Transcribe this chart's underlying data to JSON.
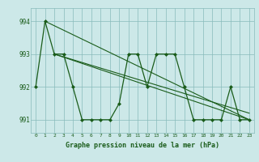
{
  "x": [
    0,
    1,
    2,
    3,
    4,
    5,
    6,
    7,
    8,
    9,
    10,
    11,
    12,
    13,
    14,
    15,
    16,
    17,
    18,
    19,
    20,
    21,
    22,
    23
  ],
  "y_main": [
    992.0,
    994.0,
    993.0,
    993.0,
    992.0,
    991.0,
    991.0,
    991.0,
    991.0,
    991.5,
    993.0,
    993.0,
    992.0,
    993.0,
    993.0,
    993.0,
    992.0,
    991.0,
    991.0,
    991.0,
    991.0,
    992.0,
    991.0,
    991.0
  ],
  "trend_lines": [
    {
      "x": [
        1,
        23
      ],
      "y": [
        994.0,
        991.0
      ]
    },
    {
      "x": [
        2,
        23
      ],
      "y": [
        993.0,
        991.2
      ]
    },
    {
      "x": [
        2,
        23
      ],
      "y": [
        993.0,
        991.0
      ]
    }
  ],
  "background_color": "#cce8e8",
  "line_color": "#1a5c1a",
  "grid_color": "#88bbbb",
  "text_color": "#1a5c1a",
  "xlabel": "Graphe pression niveau de la mer (hPa)",
  "ylim": [
    990.6,
    994.4
  ],
  "xlim": [
    -0.5,
    23.5
  ],
  "yticks": [
    991,
    992,
    993,
    994
  ],
  "xticks": [
    0,
    1,
    2,
    3,
    4,
    5,
    6,
    7,
    8,
    9,
    10,
    11,
    12,
    13,
    14,
    15,
    16,
    17,
    18,
    19,
    20,
    21,
    22,
    23
  ]
}
